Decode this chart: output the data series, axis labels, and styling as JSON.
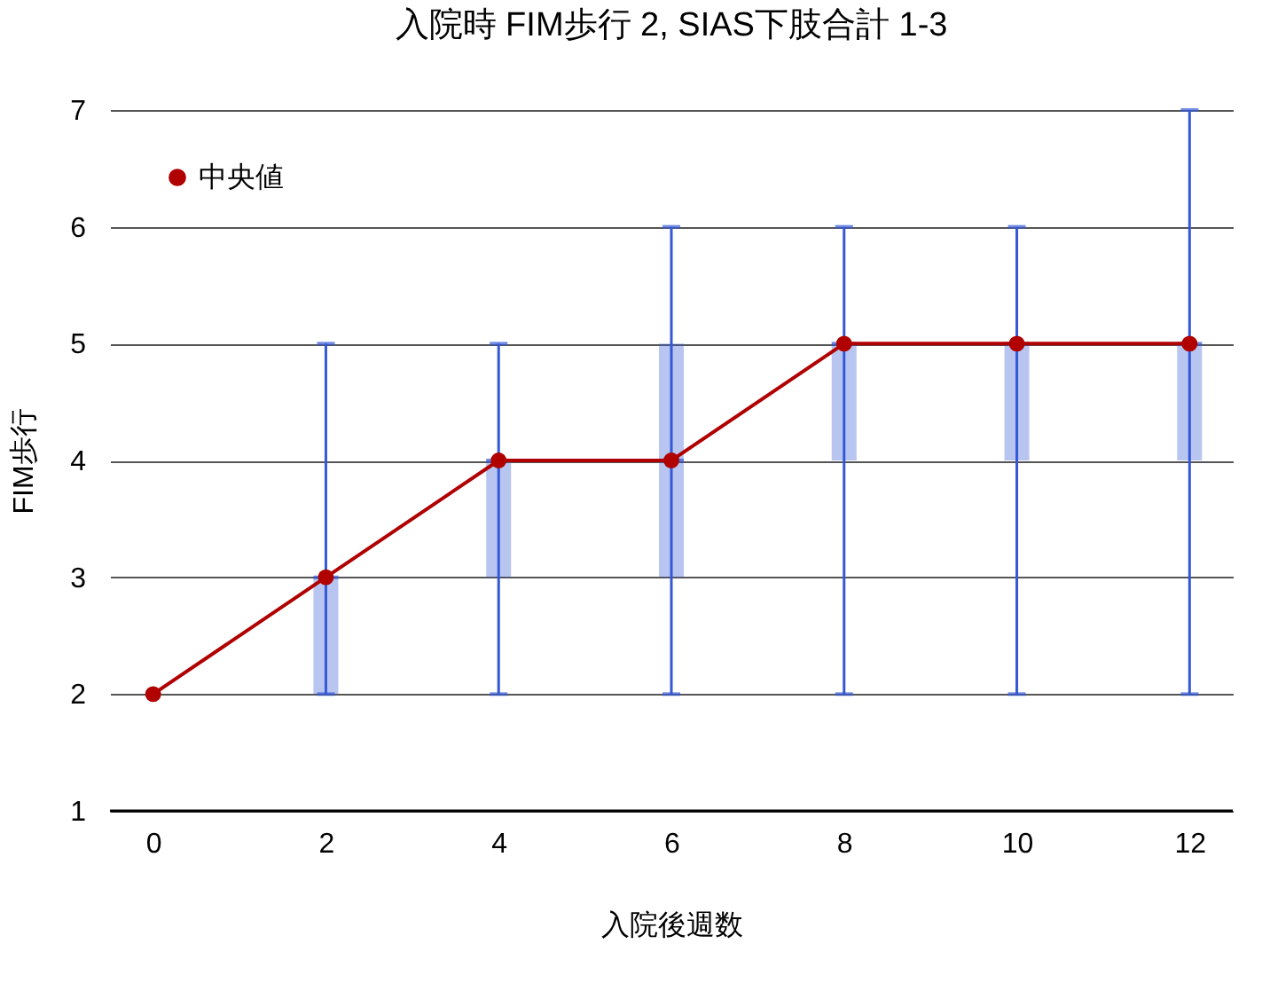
{
  "chart_data": {
    "type": "box",
    "title": "入院時 FIM歩行 2, SIAS下肢合計 1-3",
    "xlabel": "入院後週数",
    "ylabel": "FIM歩行",
    "x": [
      0,
      2,
      4,
      6,
      8,
      10,
      12
    ],
    "xlim": [
      -0.5,
      12.5
    ],
    "xticks": [
      0,
      2,
      4,
      6,
      8,
      10,
      12
    ],
    "ylim": [
      1,
      7
    ],
    "yticks": [
      1,
      2,
      3,
      4,
      5,
      6,
      7
    ],
    "grid": "y",
    "legend": "top left",
    "series": [
      {
        "color": "#3558d6",
        "boxes": [
          null,
          {
            "low": 2,
            "q1": 2,
            "median": 3,
            "q3": 3,
            "high": 5
          },
          {
            "low": 2,
            "q1": 3,
            "median": 4,
            "q3": 4,
            "high": 5
          },
          {
            "low": 2,
            "q1": 3,
            "median": 4,
            "q3": 5,
            "high": 6
          },
          {
            "low": 2,
            "q1": 4,
            "median": 5,
            "q3": 5,
            "high": 6
          },
          {
            "low": 2,
            "q1": 4,
            "median": 5,
            "q3": 5,
            "high": 6
          },
          {
            "low": 2,
            "q1": 4,
            "median": 5,
            "q3": 5,
            "high": 7
          }
        ]
      },
      {
        "type": "line",
        "name": "中央値",
        "color": "#b00000",
        "marker": "circle",
        "values": [
          2,
          3,
          4,
          4,
          5,
          5,
          5
        ]
      }
    ]
  }
}
